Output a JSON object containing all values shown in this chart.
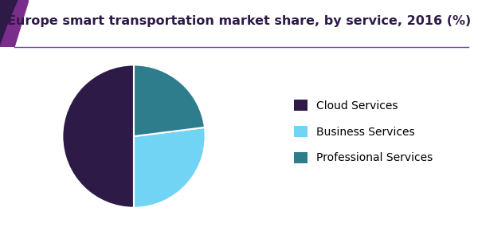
{
  "title": "Europe smart transportation market share, by service, 2016 (%)",
  "slices": [
    50,
    27,
    23
  ],
  "labels": [
    "Cloud Services",
    "Business Services",
    "Professional Services"
  ],
  "colors": [
    "#2e1a47",
    "#72d4f5",
    "#2e7d8c"
  ],
  "startangle": 90,
  "legend_fontsize": 10,
  "title_fontsize": 11.5,
  "title_color": "#2e1a47",
  "background_color": "#ffffff",
  "header_line_color": "#6b3fa0",
  "accent_color_dark": "#2e1a47",
  "accent_color_purple": "#7b2d8b"
}
